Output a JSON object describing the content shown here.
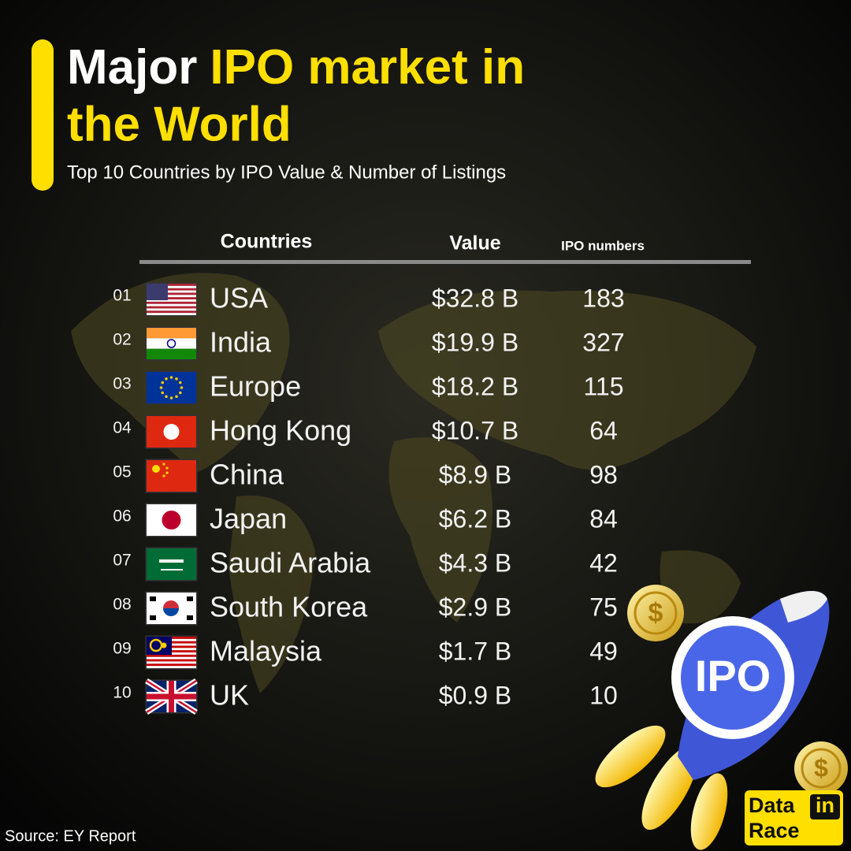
{
  "header": {
    "title": [
      "Major",
      "IPO market in",
      "the World"
    ],
    "subtitle": "Top 10 Countries by IPO Value & Number of Listings"
  },
  "table": {
    "columns": [
      "Countries",
      "Value",
      "IPO numbers"
    ],
    "rows": [
      [
        "01",
        "USA",
        "$32.8 B",
        "183"
      ],
      [
        "02",
        "India",
        "$19.9 B",
        "327"
      ],
      [
        "03",
        "Europe",
        "$18.2 B",
        "115"
      ],
      [
        "04",
        "Hong Kong",
        "$10.7 B",
        "64"
      ],
      [
        "05",
        "China",
        "$8.9 B",
        "98"
      ],
      [
        "06",
        "Japan",
        "$6.2 B",
        "84"
      ],
      [
        "07",
        "Saudi Arabia",
        "$4.3 B",
        "42"
      ],
      [
        "08",
        "South Korea",
        "$2.9 B",
        "75"
      ],
      [
        "09",
        "Malaysia",
        "$1.7 B",
        "49"
      ],
      [
        "10",
        "UK",
        "$0.9 B",
        "10"
      ]
    ]
  },
  "illustration": {
    "label": "IPO",
    "coin_symbol": "$"
  },
  "logo": [
    "Data",
    "in",
    "Race"
  ],
  "source": "Source: EY Report"
}
